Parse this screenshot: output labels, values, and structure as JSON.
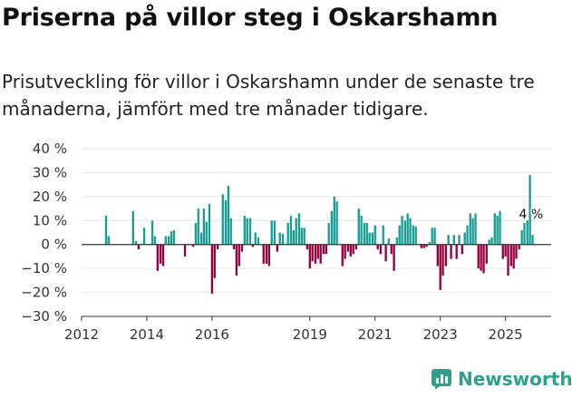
{
  "header": {
    "title": "Priserna på villor steg i Oskarshamn",
    "subtitle": "Prisutveckling för villor i Oskarshamn under de senaste tre månaderna, jämfört med tre månader tidigare."
  },
  "brand": {
    "name": "Newsworthy"
  },
  "colors": {
    "positive": "#1a9e94",
    "negative": "#96003f",
    "axis": "#333333",
    "grid": "#e6e6e6"
  },
  "chart_data": {
    "type": "bar",
    "title": "Priserna på villor steg i Oskarshamn",
    "ylabel": "",
    "xlabel": "",
    "ylim": [
      -30,
      40
    ],
    "xlim": [
      2012.0,
      2026.4
    ],
    "y_ticks": [
      -30,
      -20,
      -10,
      0,
      10,
      20,
      30,
      40
    ],
    "y_tick_labels": [
      "−30 %",
      "−20 %",
      "−10 %",
      "0 %",
      "10 %",
      "20 %",
      "30 %",
      "40 %"
    ],
    "x_ticks": [
      2012,
      2014,
      2016,
      2019,
      2021,
      2023,
      2025
    ],
    "x_tick_labels": [
      "2012",
      "2014",
      "2016",
      "2019",
      "2021",
      "2023",
      "2025"
    ],
    "unit": "%",
    "annotation": {
      "text": "4 %",
      "value": 4
    },
    "series": [
      {
        "name": "Prisutveckling",
        "points": [
          {
            "x": 2012.75,
            "y": 12
          },
          {
            "x": 2012.83,
            "y": 3.5
          },
          {
            "x": 2013.58,
            "y": 14
          },
          {
            "x": 2013.67,
            "y": 1.5
          },
          {
            "x": 2013.75,
            "y": -2
          },
          {
            "x": 2013.92,
            "y": 7
          },
          {
            "x": 2014.17,
            "y": 10
          },
          {
            "x": 2014.25,
            "y": 3.5
          },
          {
            "x": 2014.33,
            "y": -11
          },
          {
            "x": 2014.42,
            "y": -8
          },
          {
            "x": 2014.5,
            "y": -9
          },
          {
            "x": 2014.58,
            "y": 3.5
          },
          {
            "x": 2014.67,
            "y": 3.5
          },
          {
            "x": 2014.75,
            "y": 5.5
          },
          {
            "x": 2014.83,
            "y": 6
          },
          {
            "x": 2015.17,
            "y": -5
          },
          {
            "x": 2015.42,
            "y": -1
          },
          {
            "x": 2015.5,
            "y": 9
          },
          {
            "x": 2015.58,
            "y": 15
          },
          {
            "x": 2015.67,
            "y": 5
          },
          {
            "x": 2015.75,
            "y": 15
          },
          {
            "x": 2015.83,
            "y": 9.5
          },
          {
            "x": 2015.92,
            "y": 17
          },
          {
            "x": 2016.0,
            "y": -20.5
          },
          {
            "x": 2016.08,
            "y": -14
          },
          {
            "x": 2016.17,
            "y": -2
          },
          {
            "x": 2016.33,
            "y": 21
          },
          {
            "x": 2016.42,
            "y": 18.5
          },
          {
            "x": 2016.5,
            "y": 24.5
          },
          {
            "x": 2016.58,
            "y": 11
          },
          {
            "x": 2016.67,
            "y": -2
          },
          {
            "x": 2016.75,
            "y": -13
          },
          {
            "x": 2016.83,
            "y": -9
          },
          {
            "x": 2016.92,
            "y": -3
          },
          {
            "x": 2017.0,
            "y": 12
          },
          {
            "x": 2017.08,
            "y": 11
          },
          {
            "x": 2017.17,
            "y": 11
          },
          {
            "x": 2017.25,
            "y": -1
          },
          {
            "x": 2017.33,
            "y": 5
          },
          {
            "x": 2017.42,
            "y": 3
          },
          {
            "x": 2017.58,
            "y": -8
          },
          {
            "x": 2017.67,
            "y": -8
          },
          {
            "x": 2017.75,
            "y": -9
          },
          {
            "x": 2017.83,
            "y": 10
          },
          {
            "x": 2017.92,
            "y": 10
          },
          {
            "x": 2018.0,
            "y": -3
          },
          {
            "x": 2018.08,
            "y": 5
          },
          {
            "x": 2018.17,
            "y": 4.5
          },
          {
            "x": 2018.33,
            "y": 9
          },
          {
            "x": 2018.42,
            "y": 12
          },
          {
            "x": 2018.5,
            "y": 6
          },
          {
            "x": 2018.58,
            "y": 11
          },
          {
            "x": 2018.67,
            "y": 13
          },
          {
            "x": 2018.75,
            "y": 7
          },
          {
            "x": 2018.83,
            "y": 7
          },
          {
            "x": 2018.92,
            "y": -2
          },
          {
            "x": 2019.0,
            "y": -10
          },
          {
            "x": 2019.08,
            "y": -7
          },
          {
            "x": 2019.17,
            "y": -8
          },
          {
            "x": 2019.25,
            "y": -6
          },
          {
            "x": 2019.33,
            "y": -8
          },
          {
            "x": 2019.42,
            "y": -4
          },
          {
            "x": 2019.5,
            "y": -4
          },
          {
            "x": 2019.58,
            "y": 9
          },
          {
            "x": 2019.67,
            "y": 14
          },
          {
            "x": 2019.75,
            "y": 20
          },
          {
            "x": 2019.83,
            "y": 18
          },
          {
            "x": 2020.0,
            "y": -9
          },
          {
            "x": 2020.08,
            "y": -6
          },
          {
            "x": 2020.17,
            "y": -3
          },
          {
            "x": 2020.25,
            "y": -5
          },
          {
            "x": 2020.33,
            "y": -4
          },
          {
            "x": 2020.42,
            "y": -2
          },
          {
            "x": 2020.5,
            "y": 15
          },
          {
            "x": 2020.58,
            "y": 12
          },
          {
            "x": 2020.67,
            "y": 9
          },
          {
            "x": 2020.75,
            "y": 9
          },
          {
            "x": 2020.83,
            "y": 5
          },
          {
            "x": 2020.92,
            "y": 5
          },
          {
            "x": 2021.0,
            "y": 8
          },
          {
            "x": 2021.08,
            "y": -2
          },
          {
            "x": 2021.17,
            "y": -4
          },
          {
            "x": 2021.25,
            "y": 8
          },
          {
            "x": 2021.33,
            "y": -7
          },
          {
            "x": 2021.42,
            "y": 2.5
          },
          {
            "x": 2021.5,
            "y": -4
          },
          {
            "x": 2021.58,
            "y": -11
          },
          {
            "x": 2021.67,
            "y": 3
          },
          {
            "x": 2021.75,
            "y": 8
          },
          {
            "x": 2021.83,
            "y": 12
          },
          {
            "x": 2021.92,
            "y": 10
          },
          {
            "x": 2022.0,
            "y": 13
          },
          {
            "x": 2022.08,
            "y": 11
          },
          {
            "x": 2022.17,
            "y": 8
          },
          {
            "x": 2022.25,
            "y": 7.5
          },
          {
            "x": 2022.42,
            "y": -1.5
          },
          {
            "x": 2022.5,
            "y": -1.5
          },
          {
            "x": 2022.58,
            "y": -1
          },
          {
            "x": 2022.67,
            "y": 1
          },
          {
            "x": 2022.75,
            "y": 7
          },
          {
            "x": 2022.83,
            "y": 7
          },
          {
            "x": 2022.92,
            "y": -9
          },
          {
            "x": 2023.0,
            "y": -19
          },
          {
            "x": 2023.08,
            "y": -13
          },
          {
            "x": 2023.17,
            "y": -9
          },
          {
            "x": 2023.25,
            "y": 4
          },
          {
            "x": 2023.33,
            "y": -6
          },
          {
            "x": 2023.42,
            "y": 4
          },
          {
            "x": 2023.5,
            "y": -6
          },
          {
            "x": 2023.58,
            "y": 4
          },
          {
            "x": 2023.67,
            "y": -4
          },
          {
            "x": 2023.75,
            "y": 5
          },
          {
            "x": 2023.83,
            "y": 8
          },
          {
            "x": 2023.92,
            "y": 13
          },
          {
            "x": 2024.0,
            "y": 11
          },
          {
            "x": 2024.08,
            "y": 13
          },
          {
            "x": 2024.17,
            "y": -10
          },
          {
            "x": 2024.25,
            "y": -11
          },
          {
            "x": 2024.33,
            "y": -12
          },
          {
            "x": 2024.42,
            "y": -8
          },
          {
            "x": 2024.5,
            "y": 2
          },
          {
            "x": 2024.58,
            "y": 3
          },
          {
            "x": 2024.67,
            "y": 13
          },
          {
            "x": 2024.75,
            "y": 12
          },
          {
            "x": 2024.83,
            "y": 14
          },
          {
            "x": 2024.92,
            "y": -6
          },
          {
            "x": 2025.0,
            "y": -5
          },
          {
            "x": 2025.08,
            "y": -13
          },
          {
            "x": 2025.17,
            "y": -9
          },
          {
            "x": 2025.25,
            "y": -10
          },
          {
            "x": 2025.33,
            "y": -6
          },
          {
            "x": 2025.42,
            "y": -2
          },
          {
            "x": 2025.5,
            "y": 6
          },
          {
            "x": 2025.58,
            "y": 9
          },
          {
            "x": 2025.67,
            "y": 10
          },
          {
            "x": 2025.75,
            "y": 29
          },
          {
            "x": 2025.83,
            "y": 4
          }
        ]
      }
    ]
  }
}
